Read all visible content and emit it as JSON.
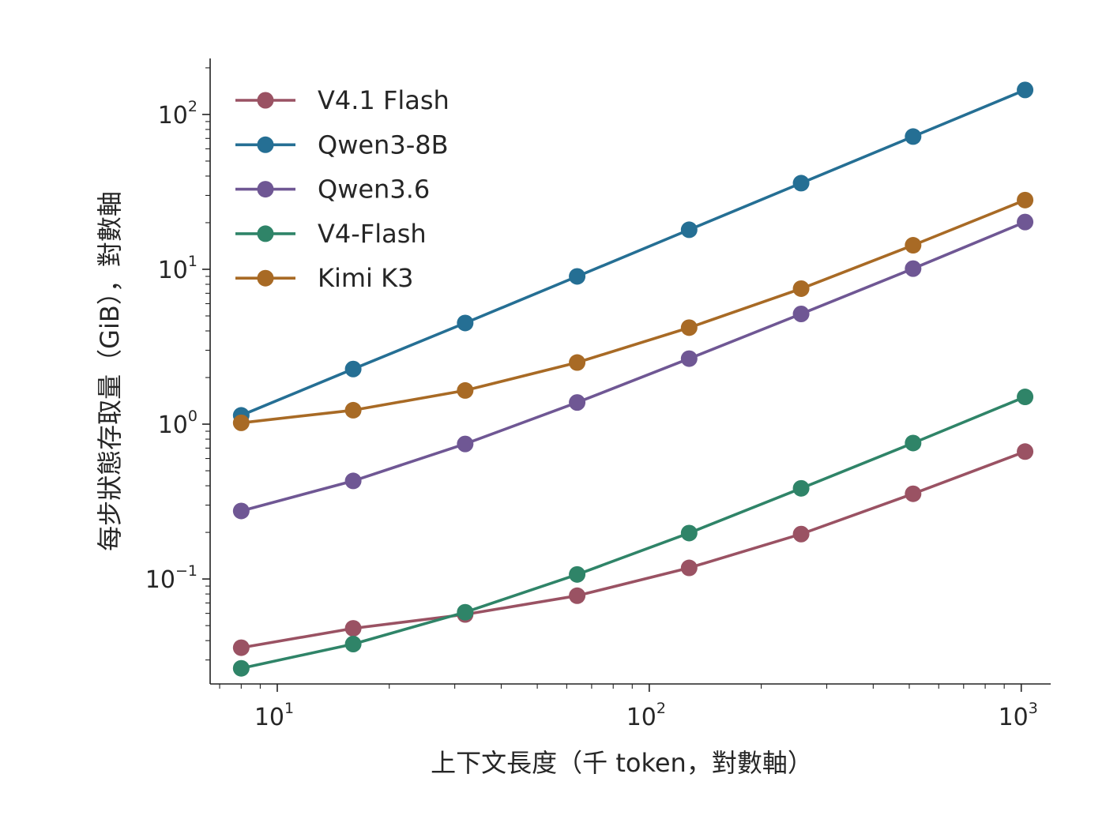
{
  "chart_data": {
    "type": "line",
    "xlabel": "上下文長度（千 token，對數軸）",
    "ylabel": "每步狀態存取量（GiB），對數軸",
    "x_scale": "log",
    "y_scale": "log",
    "xlim": [
      6.6,
      1200
    ],
    "ylim": [
      0.021,
      230
    ],
    "x_ticks": [
      {
        "value": 10,
        "base": "10",
        "exp": "1"
      },
      {
        "value": 100,
        "base": "10",
        "exp": "2"
      },
      {
        "value": 1000,
        "base": "10",
        "exp": "3"
      }
    ],
    "y_ticks": [
      {
        "value": 0.1,
        "base": "10",
        "exp": "−1"
      },
      {
        "value": 1,
        "base": "10",
        "exp": "0"
      },
      {
        "value": 10,
        "base": "10",
        "exp": "1"
      },
      {
        "value": 100,
        "base": "10",
        "exp": "2"
      }
    ],
    "grid": false,
    "legend_position": "top-left",
    "x": [
      8,
      16,
      32,
      64,
      128,
      256,
      512,
      1024
    ],
    "series": [
      {
        "name": "V4.1 Flash",
        "color": "#9a5263",
        "values": [
          0.036,
          0.048,
          0.059,
          0.078,
          0.118,
          0.195,
          0.355,
          0.665
        ]
      },
      {
        "name": "Qwen3-8B",
        "color": "#256f94",
        "values": [
          1.14,
          2.27,
          4.5,
          9.0,
          18.0,
          36.0,
          72.0,
          144.0
        ]
      },
      {
        "name": "Qwen3.6",
        "color": "#6f5794",
        "values": [
          0.275,
          0.43,
          0.745,
          1.38,
          2.65,
          5.15,
          10.1,
          20.2
        ]
      },
      {
        "name": "V4-Flash",
        "color": "#2f8468",
        "values": [
          0.0265,
          0.038,
          0.061,
          0.107,
          0.198,
          0.385,
          0.755,
          1.5
        ]
      },
      {
        "name": "Kimi K3",
        "color": "#a86a25",
        "values": [
          1.02,
          1.23,
          1.65,
          2.5,
          4.2,
          7.5,
          14.3,
          28.0
        ]
      }
    ]
  }
}
